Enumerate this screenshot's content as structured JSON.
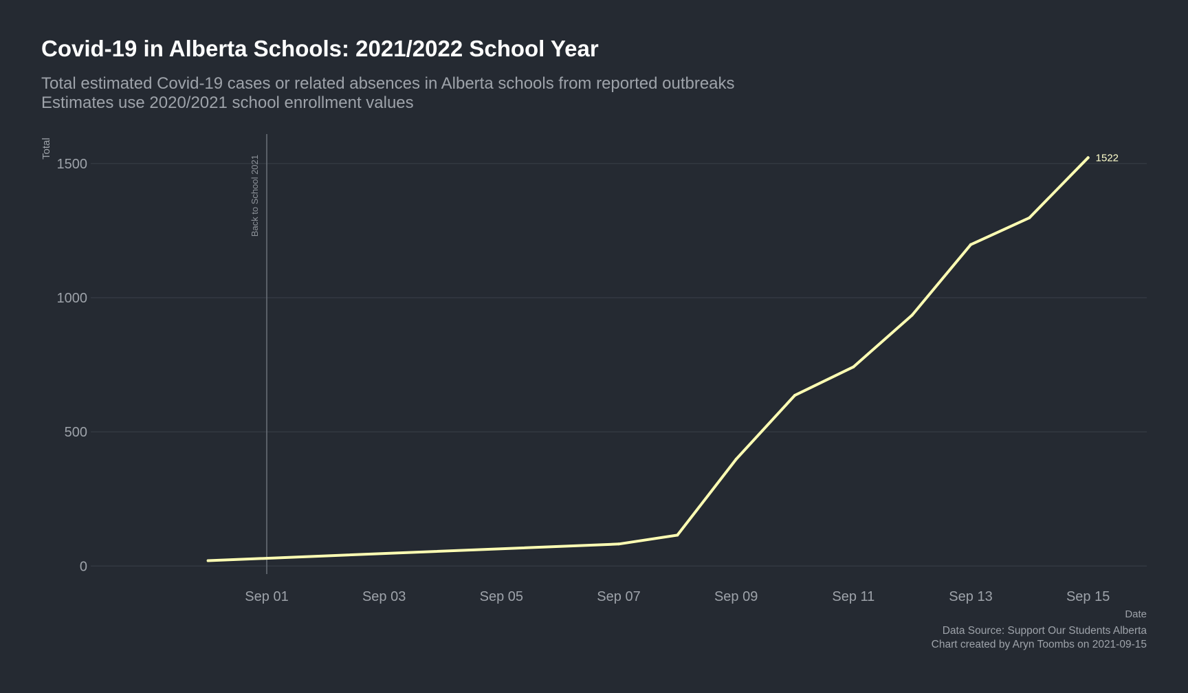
{
  "title": "Covid-19 in Alberta Schools: 2021/2022 School Year",
  "subtitle_lines": [
    "Total estimated Covid-19 cases or related absences in Alberta schools from reported outbreaks",
    "Estimates use 2020/2021 school enrollment values"
  ],
  "caption_lines": [
    "Data Source: Support Our Students Alberta",
    "Chart created by Aryn Toombs on 2021-09-15"
  ],
  "colors": {
    "background": "#252a32",
    "line": "#ffffb3",
    "end_label": "#ffffcc"
  },
  "chart_data": {
    "type": "line",
    "xlabel": "Date",
    "ylabel": "Total",
    "x_tick_labels": [
      "Sep 01",
      "Sep 03",
      "Sep 05",
      "Sep 07",
      "Sep 09",
      "Sep 11",
      "Sep 13",
      "Sep 15"
    ],
    "x_tick_dates": [
      "2021-09-01",
      "2021-09-03",
      "2021-09-05",
      "2021-09-07",
      "2021-09-09",
      "2021-09-11",
      "2021-09-13",
      "2021-09-15"
    ],
    "y_ticks": [
      0,
      500,
      1000,
      1500
    ],
    "xlim": [
      "2021-08-29",
      "2021-09-16"
    ],
    "ylim": [
      -30,
      1610
    ],
    "grid": true,
    "series": [
      {
        "x": [
          "2021-08-31",
          "2021-09-07",
          "2021-09-08",
          "2021-09-09",
          "2021-09-10",
          "2021-09-11",
          "2021-09-12",
          "2021-09-13",
          "2021-09-14",
          "2021-09-15"
        ],
        "values": [
          20,
          82,
          115,
          398,
          636,
          742,
          935,
          1198,
          1298,
          1522
        ]
      }
    ],
    "end_label": "1522",
    "reference_line": {
      "x": "2021-09-01",
      "label": "Back to School 2021"
    }
  }
}
